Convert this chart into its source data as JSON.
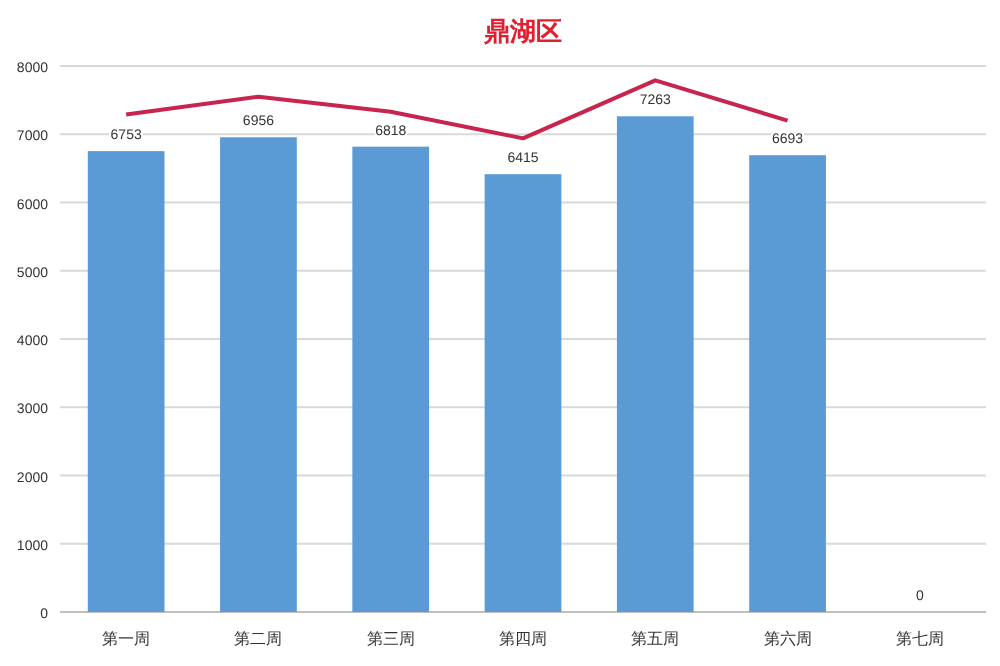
{
  "chart_data": {
    "type": "bar",
    "title": "鼎湖区",
    "categories": [
      "第一周",
      "第二周",
      "第三周",
      "第四周",
      "第五周",
      "第六周",
      "第七周"
    ],
    "series": [
      {
        "color": "#5b9bd5",
        "values": [
          6753,
          6956,
          6818,
          6415,
          7263,
          6693,
          0
        ],
        "value_labels": [
          "6753",
          "6956",
          "6818",
          "6415",
          "7263",
          "6693",
          "0"
        ]
      },
      {
        "type": "line",
        "color": "#c7254e",
        "values": [
          7290,
          7550,
          7330,
          6940,
          7790,
          7200,
          null
        ]
      }
    ],
    "ylim": [
      0,
      8000
    ],
    "yticks": [
      0,
      1000,
      2000,
      3000,
      4000,
      5000,
      6000,
      7000,
      8000
    ],
    "grid": "y"
  }
}
